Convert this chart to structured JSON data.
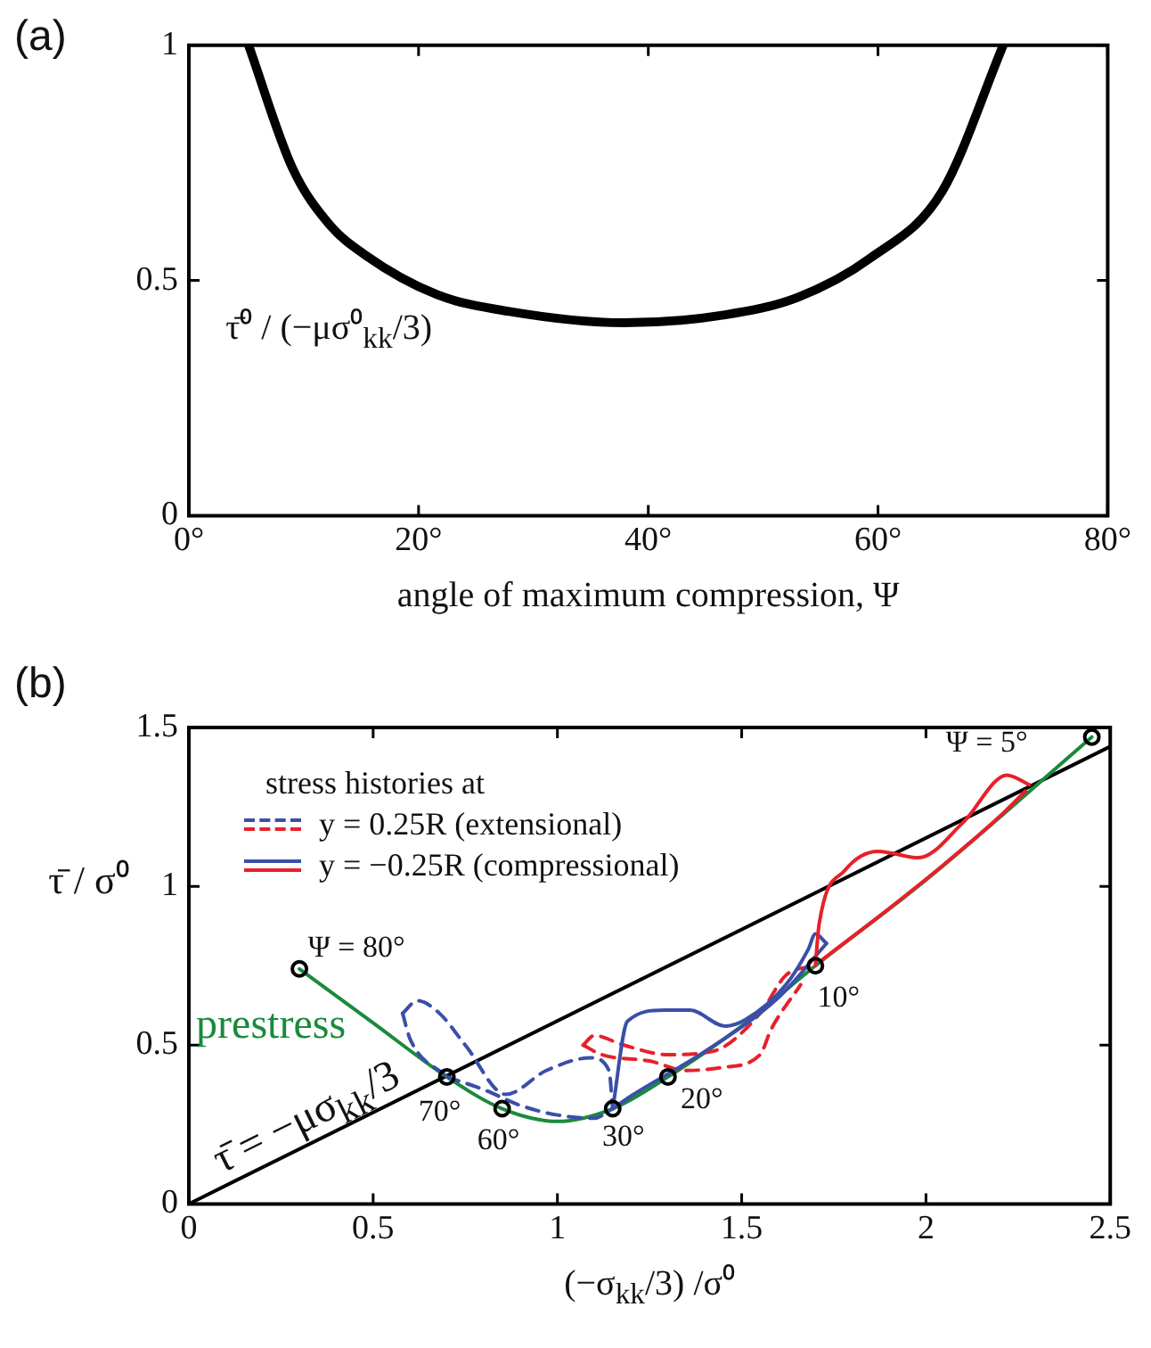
{
  "chart_data": [
    {
      "type": "line",
      "title": "(a)",
      "xlabel": "angle of maximum compression, Ψ",
      "annotations": [
        "τ̄⁰ / (−μσ⁰$_{kk}$/3)"
      ],
      "x": [
        5.2,
        9.0,
        12.2,
        15.3,
        21.6,
        27.9,
        37.9,
        46.7,
        53,
        59.3,
        65.6,
        70.9
      ],
      "series": [
        {
          "color": "#000000",
          "values": [
            1,
            0.74,
            0.62,
            0.555,
            0.47,
            0.434,
            0.41,
            0.427,
            0.464,
            0.547,
            0.69,
            1
          ]
        }
      ],
      "xlim": [
        0,
        80
      ],
      "xticks": [
        {
          "value": 0,
          "label": "0°"
        },
        {
          "value": 20,
          "label": "20°"
        },
        {
          "value": 40,
          "label": "40°"
        },
        {
          "value": 60,
          "label": "60°"
        },
        {
          "value": 80,
          "label": "80°"
        }
      ],
      "ylim": [
        0,
        1
      ],
      "yticks": [
        0,
        0.5,
        1
      ],
      "grid": false,
      "marker": "none",
      "line_style": "solid"
    },
    {
      "type": "line",
      "title": "(b)",
      "xlabel": "(−σ$_{kk}$/3) /σ⁰",
      "ylabel": "τ̄ / σ⁰",
      "legend_title": "stress histories at",
      "legend": "top left",
      "annotations": [
        {
          "text": "τ̄ = −μσ$_{kk}$/3",
          "x": 0.28,
          "y": 0.16
        },
        {
          "text": "Ψ = 80°",
          "x": 0.3,
          "y": 0.74
        },
        {
          "text": "70°",
          "x": 0.7,
          "y": 0.4
        },
        {
          "text": "60°",
          "x": 0.85,
          "y": 0.3
        },
        {
          "text": "30°",
          "x": 1.15,
          "y": 0.3
        },
        {
          "text": "20°",
          "x": 1.3,
          "y": 0.4
        },
        {
          "text": "10°",
          "x": 1.7,
          "y": 0.75
        },
        {
          "text": "Ψ = 5°",
          "x": 2.45,
          "y": 1.47
        }
      ],
      "series": [
        {
          "color": "#000000",
          "x": [
            0,
            2.5
          ],
          "values": [
            0,
            1.44
          ]
        },
        {
          "name": "prestress",
          "color": "#1a8a3c",
          "x": [
            0.3,
            0.5,
            0.7,
            0.85,
            1.0,
            1.15,
            1.3,
            1.5,
            1.7,
            2.0,
            2.45
          ],
          "values": [
            0.74,
            0.57,
            0.4,
            0.3,
            0.26,
            0.3,
            0.4,
            0.56,
            0.75,
            1.02,
            1.47
          ]
        },
        {
          "name": "y = 0.25R (extensional)",
          "color": "#3a4fa8",
          "line_style": "dashed",
          "x": [
            0.58,
            0.6,
            0.7
          ],
          "values": [
            0.6,
            0.52,
            0.4
          ]
        },
        {
          "color": "#3a4fa8",
          "line_style": "dashed",
          "x": [
            0.58,
            0.62,
            0.68,
            0.75,
            0.86,
            0.97,
            1.09,
            1.14,
            1.15
          ],
          "values": [
            0.6,
            0.64,
            0.6,
            0.5,
            0.345,
            0.42,
            0.46,
            0.42,
            0.3
          ]
        },
        {
          "color": "#3a4fa8",
          "line_style": "dashed",
          "x": [
            0.7,
            0.8,
            0.9,
            1.0,
            1.1,
            1.15
          ],
          "values": [
            0.4,
            0.36,
            0.31,
            0.28,
            0.27,
            0.3
          ]
        },
        {
          "color": "#e8202a",
          "line_style": "dashed",
          "x": [
            1.07,
            1.1,
            1.18,
            1.3,
            1.42,
            1.55,
            1.62,
            1.7
          ],
          "values": [
            0.5,
            0.53,
            0.5,
            0.47,
            0.48,
            0.6,
            0.72,
            0.75
          ]
        },
        {
          "color": "#e8202a",
          "line_style": "dashed",
          "x": [
            1.07,
            1.12,
            1.25,
            1.35,
            1.45,
            1.55,
            1.58,
            1.66
          ],
          "values": [
            0.5,
            0.47,
            0.45,
            0.42,
            0.43,
            0.47,
            0.55,
            0.69
          ]
        },
        {
          "name": "y = −0.25R (compressional)",
          "color": "#3a4fa8",
          "line_style": "solid",
          "x": [
            1.15,
            1.19,
            1.29,
            1.36,
            1.455,
            1.51,
            1.62,
            1.68,
            1.7,
            1.73
          ],
          "values": [
            0.3,
            0.575,
            0.61,
            0.61,
            0.56,
            0.58,
            0.69,
            0.8,
            0.85,
            0.82
          ]
        },
        {
          "color": "#3a4fa8",
          "line_style": "solid",
          "x": [
            1.15,
            1.2,
            1.4,
            1.6,
            1.73
          ],
          "values": [
            0.3,
            0.34,
            0.48,
            0.65,
            0.82
          ]
        },
        {
          "color": "#e8202a",
          "line_style": "solid",
          "x": [
            1.7,
            1.71,
            1.78,
            1.87,
            1.98,
            2.1,
            2.22,
            2.28
          ],
          "values": [
            0.75,
            0.88,
            1.05,
            1.11,
            1.09,
            1.2,
            1.35,
            1.32
          ]
        },
        {
          "color": "#e8202a",
          "line_style": "solid",
          "x": [
            1.72,
            1.9,
            2.05,
            2.2,
            2.27
          ],
          "values": [
            0.77,
            0.93,
            1.07,
            1.22,
            1.3
          ]
        },
        {
          "type": "scatter",
          "marker": "circle",
          "color": "#000000",
          "x": [
            0.3,
            0.7,
            0.85,
            1.15,
            1.3,
            1.7,
            2.45
          ],
          "values": [
            0.74,
            0.4,
            0.3,
            0.3,
            0.4,
            0.75,
            1.47
          ]
        }
      ],
      "xlim": [
        0,
        2.5
      ],
      "xticks": [
        0,
        0.5,
        1,
        1.5,
        2,
        2.5
      ],
      "ylim": [
        0,
        1.5
      ],
      "yticks": [
        0,
        0.5,
        1,
        1.5
      ],
      "grid": false,
      "marker": "none",
      "line_style": "solid"
    }
  ]
}
